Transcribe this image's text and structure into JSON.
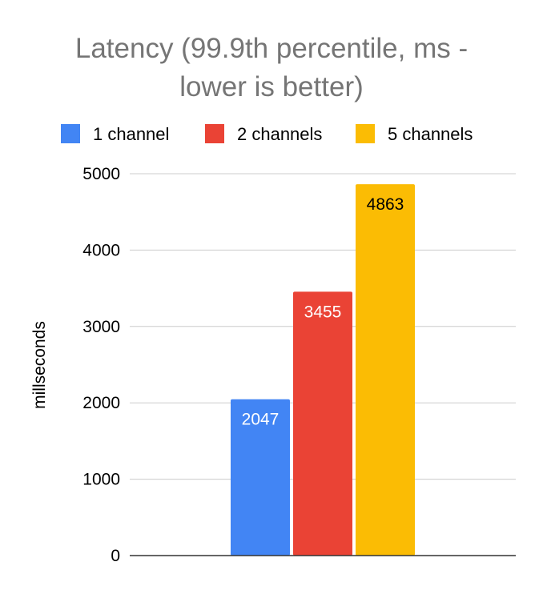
{
  "chart_data": {
    "type": "bar",
    "title_line1": "Latency (99.9th percentile, ms -",
    "title_line2": "lower is better)",
    "xlabel": "",
    "ylabel": "millseconds",
    "ylim": [
      0,
      5000
    ],
    "yticks": [
      "0",
      "1000",
      "2000",
      "3000",
      "4000",
      "5000"
    ],
    "grid": true,
    "legend_position": "top",
    "categories": [
      ""
    ],
    "series": [
      {
        "name": "1 channel",
        "values": [
          2047
        ],
        "color": "#4285F4",
        "label_color": "#ffffff",
        "label": "2047"
      },
      {
        "name": "2 channels",
        "values": [
          3455
        ],
        "color": "#EA4335",
        "label_color": "#ffffff",
        "label": "3455"
      },
      {
        "name": "5 channels",
        "values": [
          4863
        ],
        "color": "#FBBC04",
        "label_color": "#000000",
        "label": "4863"
      }
    ]
  }
}
